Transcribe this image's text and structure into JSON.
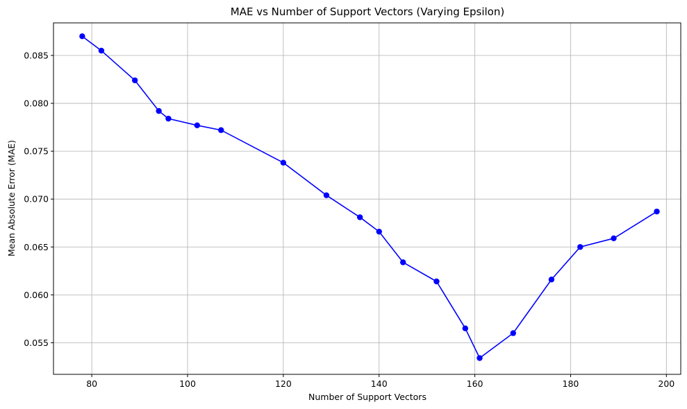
{
  "chart_data": {
    "type": "line",
    "title": "MAE vs Number of Support Vectors (Varying Epsilon)",
    "xlabel": "Number of Support Vectors",
    "ylabel": "Mean Absolute Error (MAE)",
    "xlim": [
      72,
      203
    ],
    "ylim": [
      0.0517,
      0.0884
    ],
    "xticks": [
      80,
      100,
      120,
      140,
      160,
      180,
      200
    ],
    "yticks": [
      0.055,
      0.06,
      0.065,
      0.07,
      0.075,
      0.08,
      0.085
    ],
    "xtick_labels": [
      "80",
      "100",
      "120",
      "140",
      "160",
      "180",
      "200"
    ],
    "ytick_labels": [
      "0.055",
      "0.060",
      "0.065",
      "0.070",
      "0.075",
      "0.080",
      "0.085"
    ],
    "grid": true,
    "color": "#0000ff",
    "marker": "circle",
    "x": [
      78,
      82,
      89,
      94,
      96,
      102,
      107,
      120,
      129,
      136,
      140,
      145,
      152,
      158,
      161,
      168,
      176,
      182,
      189,
      198
    ],
    "y": [
      0.087,
      0.0855,
      0.0824,
      0.0792,
      0.0784,
      0.0777,
      0.0772,
      0.0738,
      0.0704,
      0.0681,
      0.0666,
      0.0634,
      0.0614,
      0.0565,
      0.0534,
      0.056,
      0.0616,
      0.065,
      0.0659,
      0.0687
    ]
  }
}
